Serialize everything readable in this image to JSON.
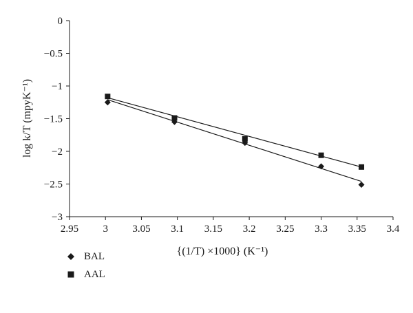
{
  "chart_data": {
    "type": "scatter",
    "xlabel": "{(1/T) ×1000} (K⁻¹)",
    "ylabel": "log k/T (mpyK⁻¹)",
    "xlim": [
      2.95,
      3.4
    ],
    "ylim": [
      -3,
      0
    ],
    "x_ticks": [
      2.95,
      3,
      3.05,
      3.1,
      3.15,
      3.2,
      3.25,
      3.3,
      3.35,
      3.4
    ],
    "y_ticks": [
      0,
      -0.5,
      -1,
      -1.5,
      -2,
      -2.5,
      -3
    ],
    "grid": false,
    "legend_position": "bottom-left",
    "series": [
      {
        "name": "BAL",
        "marker": "diamond",
        "x": [
          3.003,
          3.096,
          3.194,
          3.3,
          3.356
        ],
        "y": [
          -1.25,
          -1.55,
          -1.87,
          -2.23,
          -2.51
        ],
        "fit_line": {
          "x": [
            3.003,
            3.356
          ],
          "y": [
            -1.21,
            -2.46
          ]
        }
      },
      {
        "name": "AAL",
        "marker": "square",
        "x": [
          3.003,
          3.096,
          3.194,
          3.3,
          3.356
        ],
        "y": [
          -1.16,
          -1.49,
          -1.81,
          -2.06,
          -2.24
        ],
        "fit_line": {
          "x": [
            3.003,
            3.356
          ],
          "y": [
            -1.18,
            -2.24
          ]
        }
      }
    ]
  }
}
